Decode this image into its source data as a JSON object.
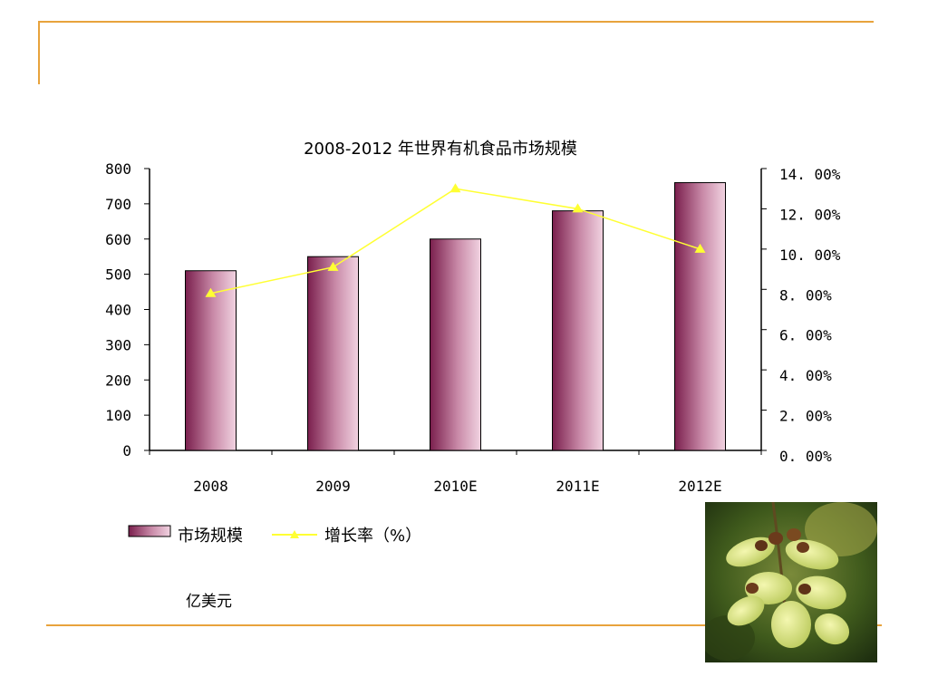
{
  "chart_data": {
    "type": "bar",
    "title": "2008-2012 年世界有机食品市场规模",
    "categories": [
      "2008",
      "2009",
      "2010E",
      "2011E",
      "2012E"
    ],
    "series": [
      {
        "name": "市场规模",
        "type": "bar",
        "axis": "left",
        "values": [
          510,
          550,
          600,
          680,
          760
        ]
      },
      {
        "name": "增长率（%）",
        "type": "line",
        "axis": "right",
        "values": [
          7.8,
          9.1,
          13.0,
          12.0,
          10.0
        ]
      }
    ],
    "y_left": {
      "ylim": [
        0,
        800
      ],
      "ticks": [
        "0",
        "100",
        "200",
        "300",
        "400",
        "500",
        "600",
        "700",
        "800"
      ]
    },
    "y_right": {
      "ylim": [
        0,
        14
      ],
      "ticks": [
        "0. 00%",
        "2. 00%",
        "4. 00%",
        "6. 00%",
        "8. 00%",
        "10. 00%",
        "12. 00%",
        "14. 00%"
      ]
    },
    "unit_label": "亿美元",
    "legend_position": "bottom-left",
    "colors": {
      "bar_dark": "#7a1f4d",
      "bar_light": "#f1d3e1",
      "line": "#ffff33",
      "rule": "#e8a33c"
    }
  },
  "photo": {
    "icon": "yellow-flower-photo"
  }
}
